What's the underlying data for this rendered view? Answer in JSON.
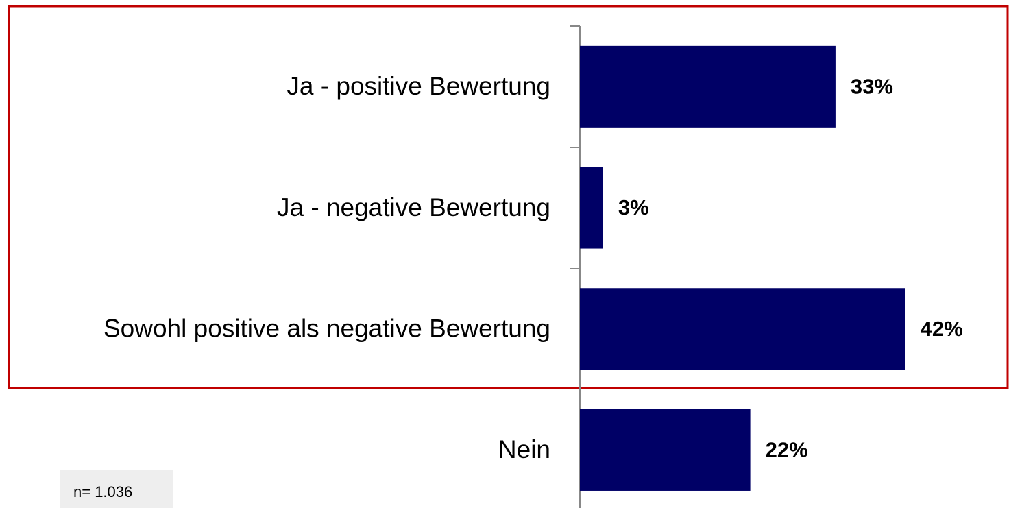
{
  "chart_data": {
    "type": "bar",
    "categories": [
      "Ja - positive Bewertung",
      "Ja - negative Bewertung",
      "Sowohl positive als negative Bewertung",
      "Nein"
    ],
    "values": [
      33,
      3,
      42,
      22
    ],
    "value_labels": [
      "33%",
      "3%",
      "42%",
      "22%"
    ],
    "color": "#000066",
    "annotation": "n= 1.036"
  }
}
